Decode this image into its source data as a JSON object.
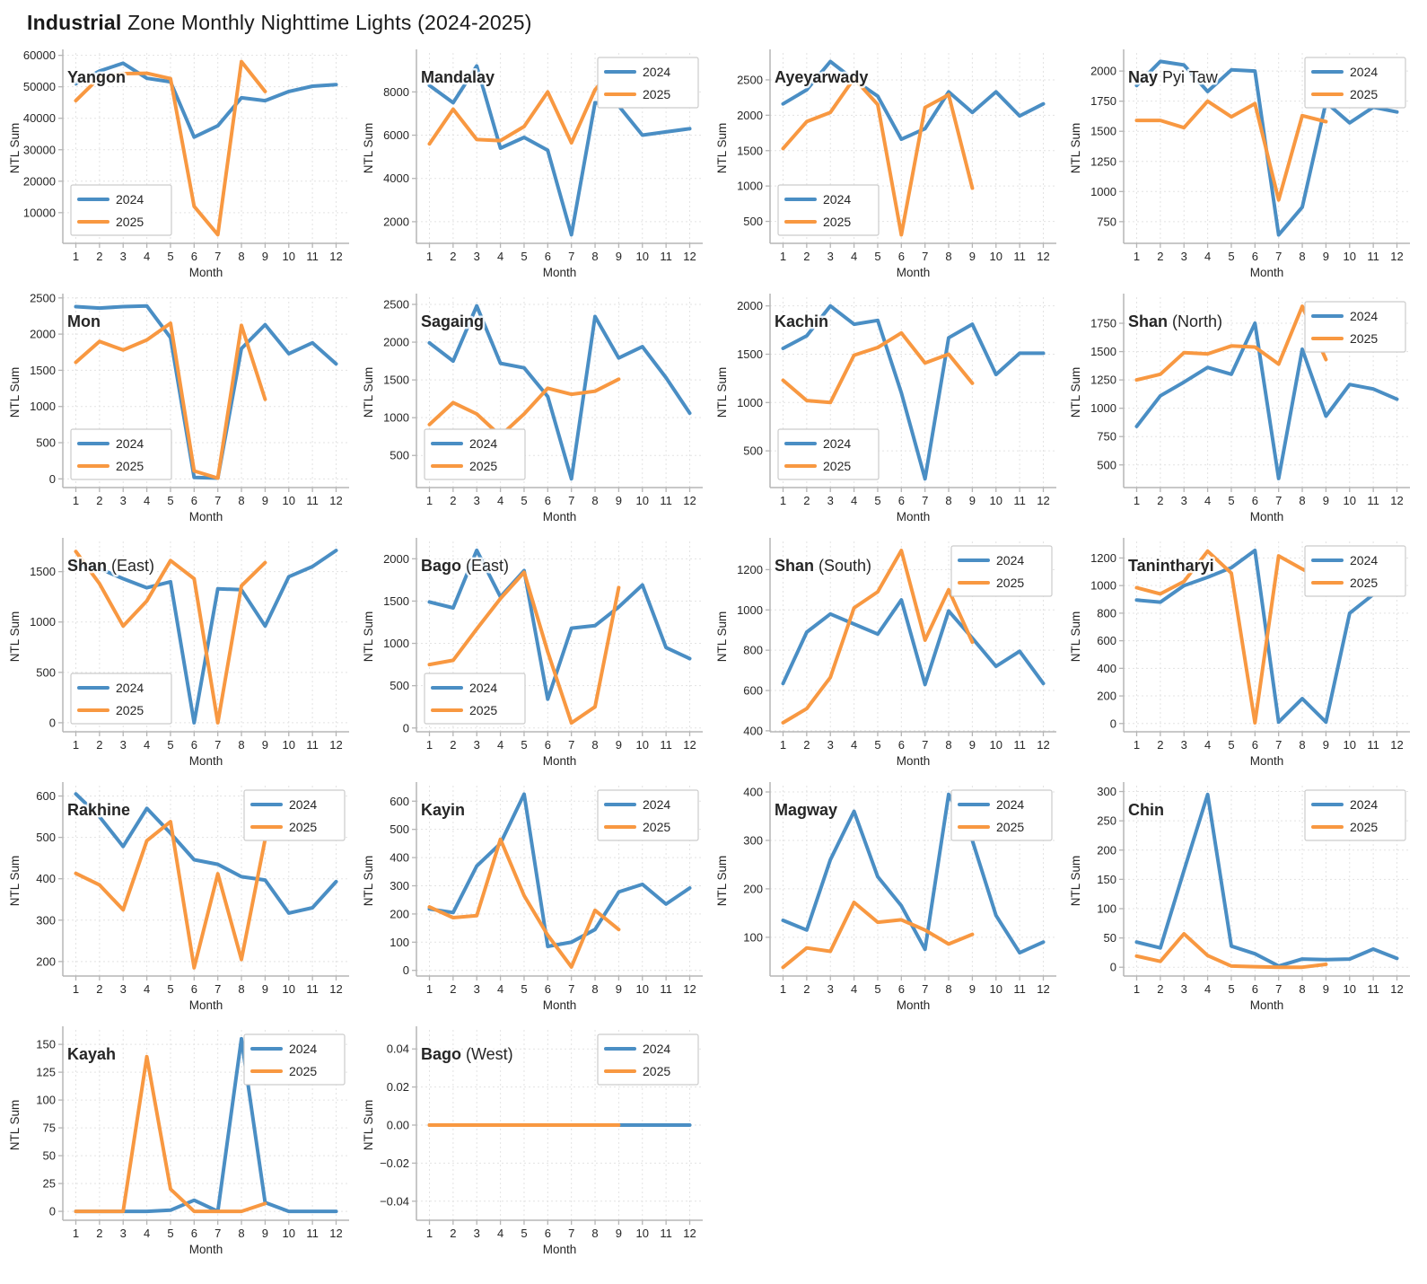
{
  "page": {
    "title_bold": "Industrial",
    "title_rest": " Zone Monthly Nighttime Lights (2024-2025)"
  },
  "style": {
    "series_colors": {
      "2024": "#4a8ec4",
      "2025": "#f89841"
    },
    "grid_color": "#e3e3e3",
    "spine_color": "#b5b5b5",
    "text_color": "#262626",
    "legend_border": "#cccccc",
    "legend_bg": "#ffffff"
  },
  "axes": {
    "xlabel": "Month",
    "ylabel": "NTL Sum",
    "xticks": [
      1,
      2,
      3,
      4,
      5,
      6,
      7,
      8,
      9,
      10,
      11,
      12
    ]
  },
  "legend": {
    "labels": [
      "2024",
      "2025"
    ]
  },
  "chart_data": [
    {
      "type": "line",
      "name": "yangon",
      "title_bold": "Yangon",
      "title_rest": "",
      "legend_pos": "lower-left",
      "ylim": [
        250,
        60750
      ],
      "yticks": [
        10000,
        20000,
        30000,
        40000,
        50000,
        60000
      ],
      "ytick_labels": [
        "10000",
        "20000",
        "30000",
        "40000",
        "50000",
        "60000"
      ],
      "series": [
        {
          "name": "2024",
          "values": [
            51000,
            55000,
            57500,
            52700,
            51600,
            34000,
            37600,
            46500,
            45600,
            48500,
            50200,
            50700
          ]
        },
        {
          "name": "2025",
          "values": [
            45600,
            53000,
            54200,
            54300,
            52600,
            12000,
            3000,
            58000,
            48500
          ]
        }
      ]
    },
    {
      "type": "line",
      "name": "mandalay",
      "title_bold": "Mandalay",
      "title_rest": "",
      "legend_pos": "upper-right",
      "ylim": [
        1000,
        9800
      ],
      "yticks": [
        2000,
        4000,
        6000,
        8000
      ],
      "ytick_labels": [
        "2000",
        "4000",
        "6000",
        "8000"
      ],
      "series": [
        {
          "name": "2024",
          "values": [
            8300,
            7500,
            9200,
            5400,
            5900,
            5300,
            1400,
            7500,
            7350,
            6000,
            6150,
            6300
          ]
        },
        {
          "name": "2025",
          "values": [
            5600,
            7200,
            5800,
            5750,
            6400,
            8000,
            5650,
            8100,
            9400
          ]
        }
      ]
    },
    {
      "type": "line",
      "name": "ayeyarwady",
      "title_bold": "Ayeyarwady",
      "title_rest": "",
      "legend_pos": "lower-left",
      "ylim": [
        190,
        2880
      ],
      "yticks": [
        500,
        1000,
        1500,
        2000,
        2500
      ],
      "ytick_labels": [
        "500",
        "1000",
        "1500",
        "2000",
        "2500"
      ],
      "series": [
        {
          "name": "2024",
          "values": [
            2160,
            2360,
            2760,
            2500,
            2270,
            1660,
            1810,
            2330,
            2040,
            2330,
            1990,
            2160
          ]
        },
        {
          "name": "2025",
          "values": [
            1530,
            1910,
            2040,
            2520,
            2150,
            310,
            2110,
            2290,
            970
          ]
        }
      ]
    },
    {
      "type": "line",
      "name": "nay-pyi-taw",
      "title_bold": "Nay",
      "title_rest": " Pyi Taw",
      "legend_pos": "upper-right",
      "ylim": [
        570,
        2150
      ],
      "yticks": [
        750,
        1000,
        1250,
        1500,
        1750,
        2000
      ],
      "ytick_labels": [
        "750",
        "1000",
        "1250",
        "1500",
        "1750",
        "2000"
      ],
      "series": [
        {
          "name": "2024",
          "values": [
            1880,
            2080,
            2050,
            1830,
            2010,
            2000,
            640,
            870,
            1740,
            1570,
            1700,
            1660
          ]
        },
        {
          "name": "2025",
          "values": [
            1590,
            1590,
            1530,
            1750,
            1620,
            1730,
            930,
            1630,
            1580
          ]
        }
      ]
    },
    {
      "type": "line",
      "name": "mon",
      "title_bold": "Mon",
      "title_rest": "",
      "legend_pos": "lower-left",
      "ylim": [
        -120,
        2510
      ],
      "yticks": [
        0,
        500,
        1000,
        1500,
        2000,
        2500
      ],
      "ytick_labels": [
        "0",
        "500",
        "1000",
        "1500",
        "2000",
        "2500"
      ],
      "series": [
        {
          "name": "2024",
          "values": [
            2380,
            2360,
            2380,
            2390,
            1950,
            20,
            10,
            1800,
            2130,
            1730,
            1880,
            1590
          ]
        },
        {
          "name": "2025",
          "values": [
            1610,
            1900,
            1780,
            1920,
            2150,
            110,
            10,
            2120,
            1100
          ]
        }
      ]
    },
    {
      "type": "line",
      "name": "sagaing",
      "title_bold": "Sagaing",
      "title_rest": "",
      "legend_pos": "lower-left",
      "ylim": [
        75,
        2595
      ],
      "yticks": [
        500,
        1000,
        1500,
        2000,
        2500
      ],
      "ytick_labels": [
        "500",
        "1000",
        "1500",
        "2000",
        "2500"
      ],
      "series": [
        {
          "name": "2024",
          "values": [
            1990,
            1750,
            2480,
            1720,
            1660,
            1280,
            190,
            2340,
            1790,
            1940,
            1530,
            1060
          ]
        },
        {
          "name": "2025",
          "values": [
            910,
            1200,
            1050,
            760,
            1050,
            1390,
            1310,
            1350,
            1510
          ]
        }
      ]
    },
    {
      "type": "line",
      "name": "kachin",
      "title_bold": "Kachin",
      "title_rest": "",
      "legend_pos": "lower-left",
      "ylim": [
        120,
        2090
      ],
      "yticks": [
        500,
        1000,
        1500,
        2000
      ],
      "ytick_labels": [
        "500",
        "1000",
        "1500",
        "2000"
      ],
      "series": [
        {
          "name": "2024",
          "values": [
            1560,
            1690,
            2000,
            1810,
            1850,
            1100,
            210,
            1670,
            1810,
            1290,
            1510,
            1510
          ]
        },
        {
          "name": "2025",
          "values": [
            1230,
            1020,
            1000,
            1490,
            1570,
            1720,
            1410,
            1500,
            1200
          ]
        }
      ]
    },
    {
      "type": "line",
      "name": "shan-north",
      "title_bold": "Shan",
      "title_rest": " (North)",
      "legend_pos": "upper-right",
      "ylim": [
        300,
        1980
      ],
      "yticks": [
        500,
        750,
        1000,
        1250,
        1500,
        1750
      ],
      "ytick_labels": [
        "500",
        "750",
        "1000",
        "1250",
        "1500",
        "1750"
      ],
      "series": [
        {
          "name": "2024",
          "values": [
            840,
            1110,
            1230,
            1360,
            1300,
            1750,
            380,
            1520,
            930,
            1210,
            1170,
            1080
          ]
        },
        {
          "name": "2025",
          "values": [
            1250,
            1300,
            1490,
            1480,
            1550,
            1540,
            1390,
            1900,
            1430
          ]
        }
      ]
    },
    {
      "type": "line",
      "name": "shan-east",
      "title_bold": "Shan",
      "title_rest": " (East)",
      "legend_pos": "lower-left",
      "ylim": [
        -90,
        1800
      ],
      "yticks": [
        0,
        500,
        1000,
        1500
      ],
      "ytick_labels": [
        "0",
        "500",
        "1000",
        "1500"
      ],
      "series": [
        {
          "name": "2024",
          "values": [
            1570,
            1530,
            1430,
            1340,
            1400,
            0,
            1330,
            1320,
            960,
            1450,
            1550,
            1710
          ]
        },
        {
          "name": "2025",
          "values": [
            1700,
            1380,
            960,
            1210,
            1610,
            1430,
            0,
            1360,
            1590
          ]
        }
      ]
    },
    {
      "type": "line",
      "name": "bago-east",
      "title_bold": "Bago",
      "title_rest": " (East)",
      "legend_pos": "lower-left",
      "ylim": [
        -45,
        2205
      ],
      "yticks": [
        0,
        500,
        1000,
        1500,
        2000
      ],
      "ytick_labels": [
        "0",
        "500",
        "1000",
        "1500",
        "2000"
      ],
      "series": [
        {
          "name": "2024",
          "values": [
            1490,
            1420,
            2100,
            1550,
            1860,
            340,
            1180,
            1210,
            1430,
            1690,
            950,
            820
          ]
        },
        {
          "name": "2025",
          "values": [
            750,
            800,
            1170,
            1530,
            1840,
            900,
            60,
            250,
            1660
          ]
        }
      ]
    },
    {
      "type": "line",
      "name": "shan-south",
      "title_bold": "Shan",
      "title_rest": " (South)",
      "legend_pos": "upper-right",
      "ylim": [
        395,
        1340
      ],
      "yticks": [
        400,
        600,
        800,
        1000,
        1200
      ],
      "ytick_labels": [
        "400",
        "600",
        "800",
        "1000",
        "1200"
      ],
      "series": [
        {
          "name": "2024",
          "values": [
            635,
            890,
            980,
            930,
            880,
            1050,
            630,
            995,
            860,
            720,
            795,
            635
          ]
        },
        {
          "name": "2025",
          "values": [
            440,
            510,
            665,
            1010,
            1090,
            1295,
            850,
            1100,
            840
          ]
        }
      ]
    },
    {
      "type": "line",
      "name": "tanintharyi",
      "title_bold": "Tanintharyi",
      "title_rest": "",
      "legend_pos": "upper-right",
      "ylim": [
        -60,
        1320
      ],
      "yticks": [
        0,
        200,
        400,
        600,
        800,
        1000,
        1200
      ],
      "ytick_labels": [
        "0",
        "200",
        "400",
        "600",
        "800",
        "1000",
        "1200"
      ],
      "series": [
        {
          "name": "2024",
          "values": [
            895,
            880,
            1000,
            1060,
            1130,
            1255,
            10,
            180,
            10,
            800,
            935,
            940
          ]
        },
        {
          "name": "2025",
          "values": [
            985,
            940,
            1030,
            1250,
            1090,
            5,
            1215,
            1120,
            1030
          ]
        }
      ]
    },
    {
      "type": "line",
      "name": "rakhine",
      "title_bold": "Rakhine",
      "title_rest": "",
      "legend_pos": "upper-right",
      "ylim": [
        165,
        625
      ],
      "yticks": [
        200,
        300,
        400,
        500,
        600
      ],
      "ytick_labels": [
        "200",
        "300",
        "400",
        "500",
        "600"
      ],
      "series": [
        {
          "name": "2024",
          "values": [
            605,
            550,
            478,
            570,
            510,
            446,
            435,
            405,
            397,
            317,
            330,
            393
          ]
        },
        {
          "name": "2025",
          "values": [
            413,
            385,
            325,
            492,
            538,
            185,
            412,
            205,
            495
          ]
        }
      ]
    },
    {
      "type": "line",
      "name": "kayin",
      "title_bold": "Kayin",
      "title_rest": "",
      "legend_pos": "upper-right",
      "ylim": [
        -20,
        655
      ],
      "yticks": [
        0,
        100,
        200,
        300,
        400,
        500,
        600
      ],
      "ytick_labels": [
        "0",
        "100",
        "200",
        "300",
        "400",
        "500",
        "600"
      ],
      "series": [
        {
          "name": "2024",
          "values": [
            218,
            205,
            370,
            450,
            625,
            85,
            100,
            145,
            278,
            305,
            235,
            292
          ]
        },
        {
          "name": "2025",
          "values": [
            225,
            187,
            194,
            465,
            265,
            125,
            12,
            213,
            145
          ]
        }
      ]
    },
    {
      "type": "line",
      "name": "magway",
      "title_bold": "Magway",
      "title_rest": "",
      "legend_pos": "upper-right",
      "ylim": [
        20,
        413
      ],
      "yticks": [
        100,
        200,
        300,
        400
      ],
      "ytick_labels": [
        "100",
        "200",
        "300",
        "400"
      ],
      "series": [
        {
          "name": "2024",
          "values": [
            135,
            115,
            260,
            360,
            225,
            165,
            75,
            395,
            300,
            145,
            68,
            90
          ]
        },
        {
          "name": "2025",
          "values": [
            38,
            78,
            71,
            172,
            131,
            136,
            115,
            86,
            106
          ]
        }
      ]
    },
    {
      "type": "line",
      "name": "chin",
      "title_bold": "Chin",
      "title_rest": "",
      "legend_pos": "upper-right",
      "ylim": [
        -15,
        310
      ],
      "yticks": [
        0,
        50,
        100,
        150,
        200,
        250,
        300
      ],
      "ytick_labels": [
        "0",
        "50",
        "100",
        "150",
        "200",
        "250",
        "300"
      ],
      "series": [
        {
          "name": "2024",
          "values": [
            43,
            33,
            165,
            295,
            36,
            23,
            2,
            14,
            13,
            14,
            31,
            15
          ]
        },
        {
          "name": "2025",
          "values": [
            19,
            10,
            57,
            20,
            2,
            1,
            0,
            0,
            5
          ]
        }
      ]
    },
    {
      "type": "line",
      "name": "kayah",
      "title_bold": "Kayah",
      "title_rest": "",
      "legend_pos": "upper-right",
      "ylim": [
        -8,
        163
      ],
      "yticks": [
        0,
        25,
        50,
        75,
        100,
        125,
        150
      ],
      "ytick_labels": [
        "0",
        "25",
        "50",
        "75",
        "100",
        "125",
        "150"
      ],
      "series": [
        {
          "name": "2024",
          "values": [
            0,
            0,
            0,
            0,
            1,
            10,
            0,
            155,
            8,
            0,
            0,
            0
          ]
        },
        {
          "name": "2025",
          "values": [
            0,
            0,
            0,
            139,
            20,
            0,
            0,
            0,
            7
          ]
        }
      ]
    },
    {
      "type": "line",
      "name": "bago-west",
      "title_bold": "Bago",
      "title_rest": " (West)",
      "legend_pos": "upper-right",
      "ylim": [
        -0.05,
        0.05
      ],
      "yticks": [
        -0.04,
        -0.02,
        0,
        0.02,
        0.04
      ],
      "ytick_labels": [
        "−0.04",
        "−0.02",
        "0.00",
        "0.02",
        "0.04"
      ],
      "series": [
        {
          "name": "2024",
          "values": [
            0,
            0,
            0,
            0,
            0,
            0,
            0,
            0,
            0,
            0,
            0,
            0
          ]
        },
        {
          "name": "2025",
          "values": [
            0,
            0,
            0,
            0,
            0,
            0,
            0,
            0,
            0
          ]
        }
      ]
    }
  ]
}
